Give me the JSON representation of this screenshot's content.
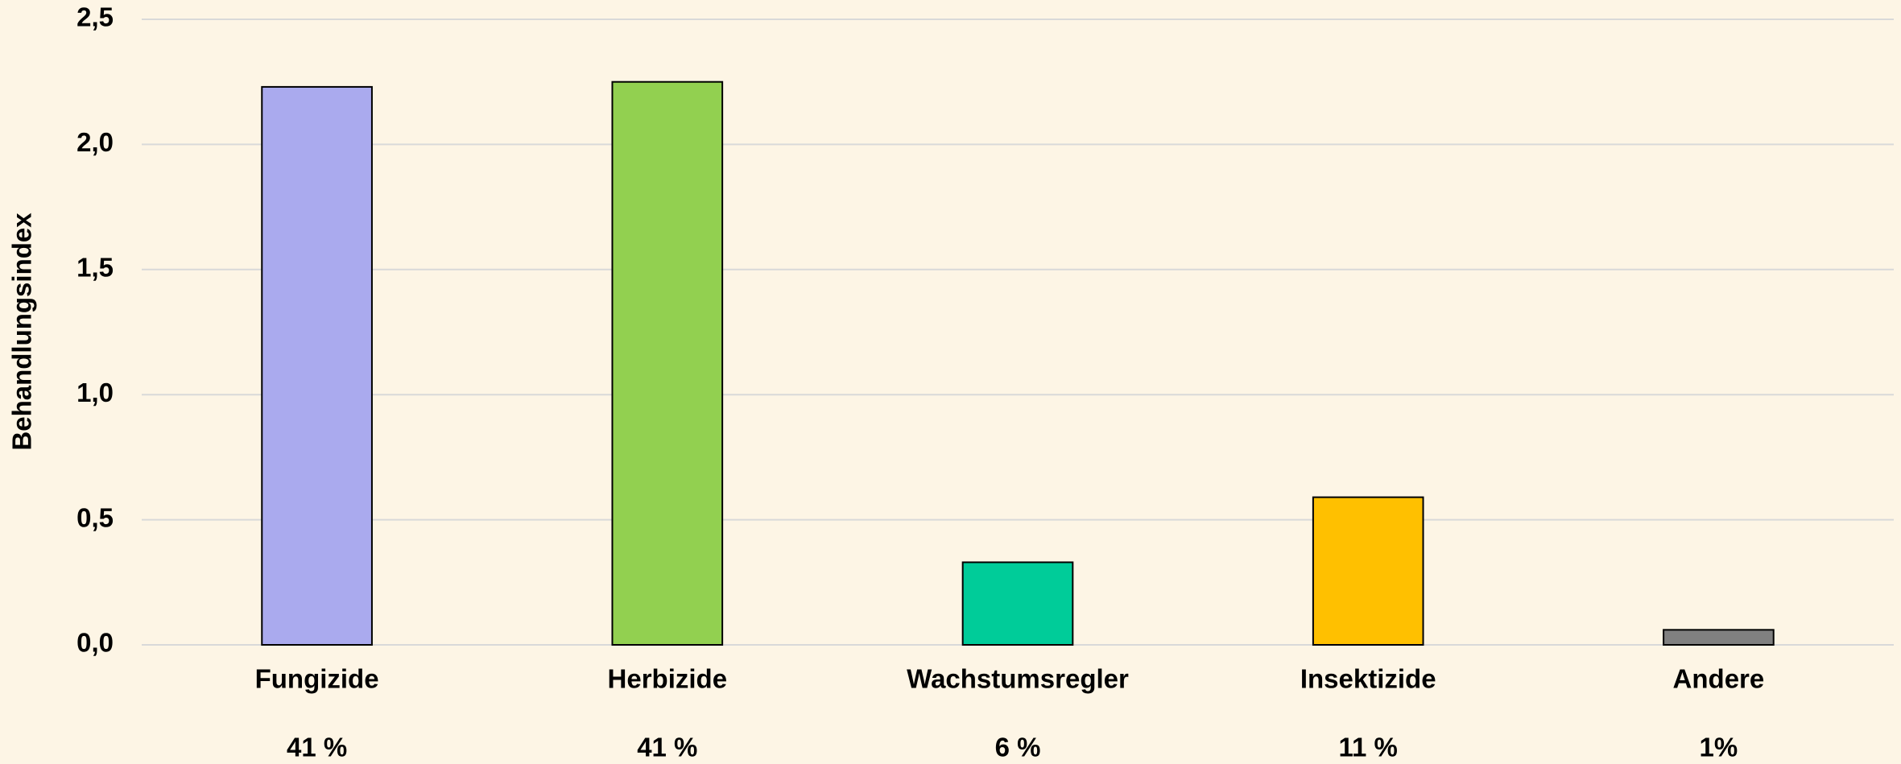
{
  "chart_data": {
    "type": "bar",
    "y_label": "Behandlungsindex",
    "categories": [
      "Fungizide",
      "Herbizide",
      "Wachstumsregler",
      "Insektizide",
      "Andere"
    ],
    "share_labels": [
      "41 %",
      "41 %",
      "6 %",
      "11 %",
      "1%"
    ],
    "values": [
      2.23,
      2.25,
      0.33,
      0.59,
      0.06
    ],
    "colors": [
      "#aaaaee",
      "#92d050",
      "#00cc99",
      "#ffc000",
      "#808080"
    ],
    "ylim": [
      0,
      2.5
    ],
    "yticks": [
      {
        "value": 0,
        "label": "0,0"
      },
      {
        "value": 0.5,
        "label": "0,5"
      },
      {
        "value": 1,
        "label": "1,0"
      },
      {
        "value": 1.5,
        "label": "1,5"
      },
      {
        "value": 2,
        "label": "2,0"
      },
      {
        "value": 2.5,
        "label": "2,5"
      }
    ],
    "grid": true
  }
}
